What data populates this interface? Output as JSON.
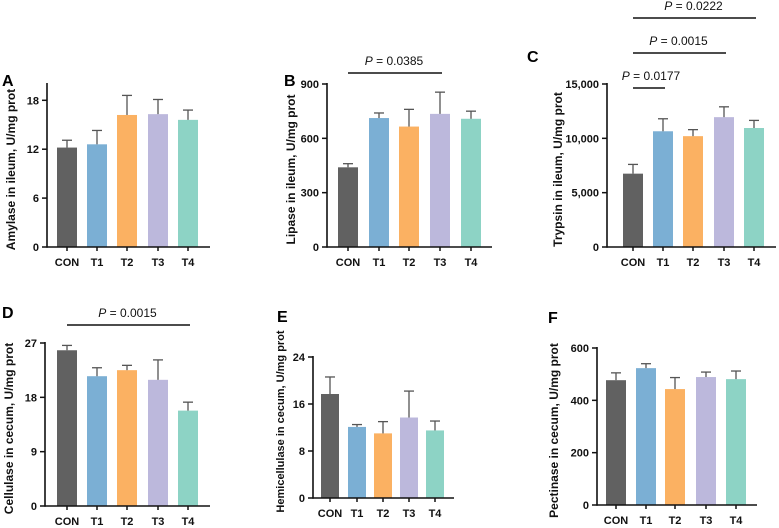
{
  "colors": {
    "CON": "#616161",
    "T1": "#7bafd4",
    "T2": "#fbb162",
    "T3": "#bcb8dc",
    "T4": "#8dd3c5",
    "axis": "#111111"
  },
  "chart_data": [
    {
      "panel": "A",
      "type": "bar",
      "ylabel": "Amylase in ileum, U/mg prot",
      "categories": [
        "CON",
        "T1",
        "T2",
        "T3",
        "T4"
      ],
      "values": [
        12.2,
        12.6,
        16.2,
        16.3,
        15.6
      ],
      "error_upper": [
        13.1,
        14.3,
        18.6,
        18.1,
        16.8
      ],
      "yticks": [
        0,
        6,
        12,
        18
      ],
      "ytick_labels": [
        "0",
        "6",
        "12",
        "18"
      ],
      "ylim": [
        0,
        20
      ],
      "annotations": []
    },
    {
      "panel": "B",
      "type": "bar",
      "ylabel": "Lipase in ileum, U/mg prot",
      "categories": [
        "CON",
        "T1",
        "T2",
        "T3",
        "T4"
      ],
      "values": [
        440,
        712,
        665,
        735,
        708
      ],
      "error_upper": [
        460,
        740,
        760,
        855,
        750
      ],
      "yticks": [
        0,
        300,
        600,
        900
      ],
      "ytick_labels": [
        "0",
        "300",
        "600",
        "900"
      ],
      "ylim": [
        0,
        900
      ],
      "annotations": [
        {
          "p": "P",
          "text": " = 0.0385",
          "from": "CON",
          "to": "T3"
        }
      ]
    },
    {
      "panel": "C",
      "type": "bar",
      "ylabel": "Trypsin in ileum, U/mg prot",
      "categories": [
        "CON",
        "T1",
        "T2",
        "T3",
        "T4"
      ],
      "values": [
        6750,
        10650,
        10200,
        11950,
        10950
      ],
      "error_upper": [
        7600,
        11800,
        10800,
        12900,
        11650
      ],
      "yticks": [
        0,
        5000,
        10000,
        15000
      ],
      "ytick_labels": [
        "0",
        "5,000",
        "10,000",
        "15,000"
      ],
      "ylim": [
        0,
        15000
      ],
      "annotations": [
        {
          "p": "P",
          "text": " = 0.0177",
          "from": "CON",
          "to": "T1"
        },
        {
          "p": "P",
          "text": " = 0.0015",
          "from": "CON",
          "to": "T3"
        },
        {
          "p": "P",
          "text": " = 0.0222",
          "from": "CON",
          "to": "T4"
        }
      ]
    },
    {
      "panel": "D",
      "type": "bar",
      "ylabel": "Cellulase in cecum, U/mg prot",
      "categories": [
        "CON",
        "T1",
        "T2",
        "T3",
        "T4"
      ],
      "values": [
        25.8,
        21.5,
        22.5,
        20.9,
        15.8
      ],
      "error_upper": [
        26.6,
        22.9,
        23.3,
        24.2,
        17.2
      ],
      "yticks": [
        0,
        9,
        18,
        27
      ],
      "ytick_labels": [
        "0",
        "9",
        "18",
        "27"
      ],
      "ylim": [
        0,
        27
      ],
      "annotations": [
        {
          "p": "P",
          "text": " = 0.0015",
          "from": "CON",
          "to": "T4"
        }
      ]
    },
    {
      "panel": "E",
      "type": "bar",
      "ylabel": "Hemicellulase in cecum, U/mg prot",
      "categories": [
        "CON",
        "T1",
        "T2",
        "T3",
        "T4"
      ],
      "values": [
        17.7,
        12.1,
        11.0,
        13.7,
        11.5
      ],
      "error_upper": [
        20.6,
        12.5,
        13.0,
        18.2,
        13.1
      ],
      "yticks": [
        0,
        8,
        16,
        24
      ],
      "ytick_labels": [
        "0",
        "8",
        "16",
        "24"
      ],
      "ylim": [
        0,
        24
      ],
      "annotations": []
    },
    {
      "panel": "F",
      "type": "bar",
      "ylabel": "Pectinase in cecum, U/mg prot",
      "categories": [
        "CON",
        "T1",
        "T2",
        "T3",
        "T4"
      ],
      "values": [
        477,
        523,
        443,
        489,
        481
      ],
      "error_upper": [
        505,
        540,
        487,
        508,
        512
      ],
      "yticks": [
        0,
        200,
        400,
        600
      ],
      "ytick_labels": [
        "0",
        "200",
        "400",
        "600"
      ],
      "ylim": [
        0,
        600
      ],
      "annotations": []
    }
  ]
}
